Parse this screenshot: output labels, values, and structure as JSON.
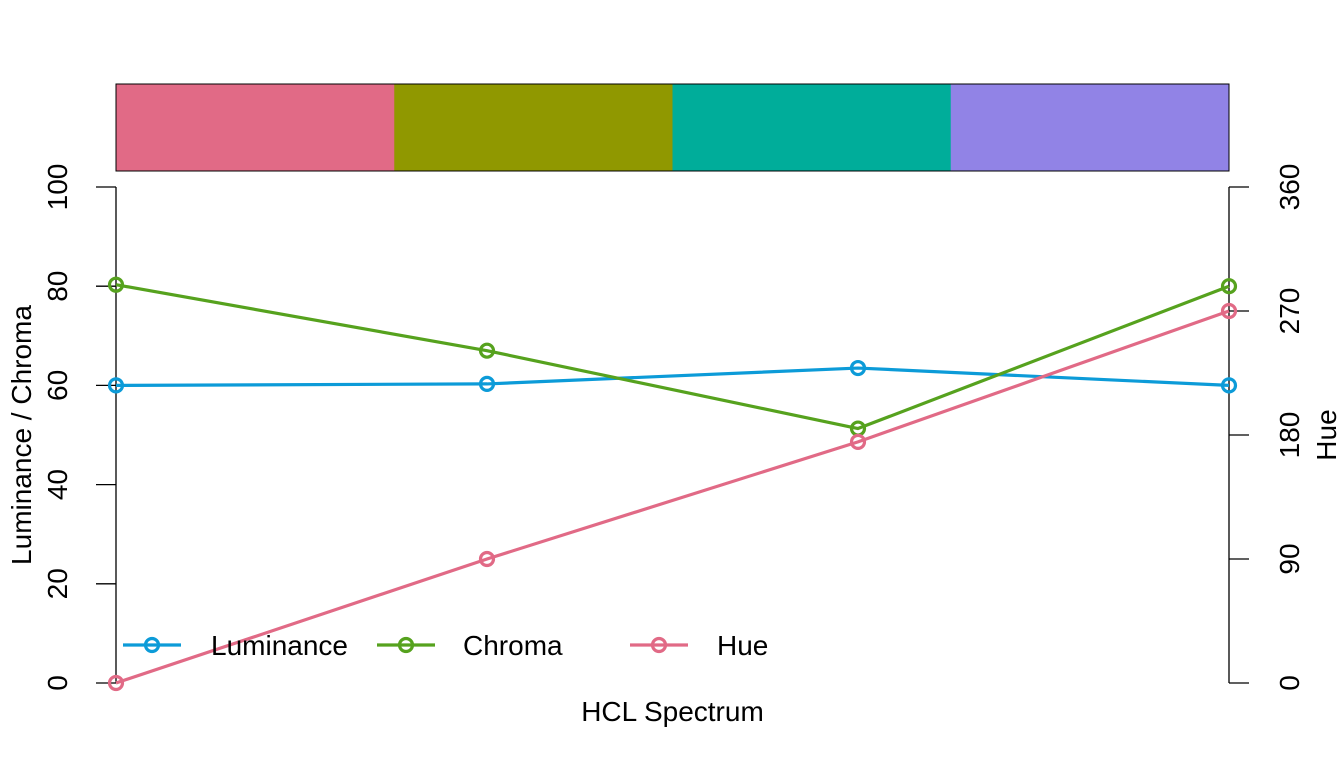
{
  "chart_data": {
    "type": "line",
    "xlabel": "HCL Spectrum",
    "ylabel": "Luminance / Chroma",
    "y2label": "Hue",
    "ylim": [
      0,
      100
    ],
    "y2lim": [
      0,
      360
    ],
    "yticks": [
      "0",
      "20",
      "40",
      "60",
      "80",
      "100"
    ],
    "y2ticks": [
      "0",
      "90",
      "180",
      "270",
      "360"
    ],
    "palette": [
      "#E16A86",
      "#909800",
      "#00AD9A",
      "#9183E6"
    ],
    "series": [
      {
        "name": "Luminance",
        "axis": "left",
        "color": "#0C9BD8",
        "values": [
          60,
          60.3,
          63.5,
          60
        ]
      },
      {
        "name": "Chroma",
        "axis": "left",
        "color": "#56A21E",
        "values": [
          80.3,
          67,
          51.3,
          80
        ]
      },
      {
        "name": "Hue",
        "axis": "right",
        "color": "#E16A86",
        "values": [
          0,
          90,
          175,
          270
        ]
      }
    ],
    "legend": {
      "position": "bottom-left",
      "horizontal": true
    }
  }
}
